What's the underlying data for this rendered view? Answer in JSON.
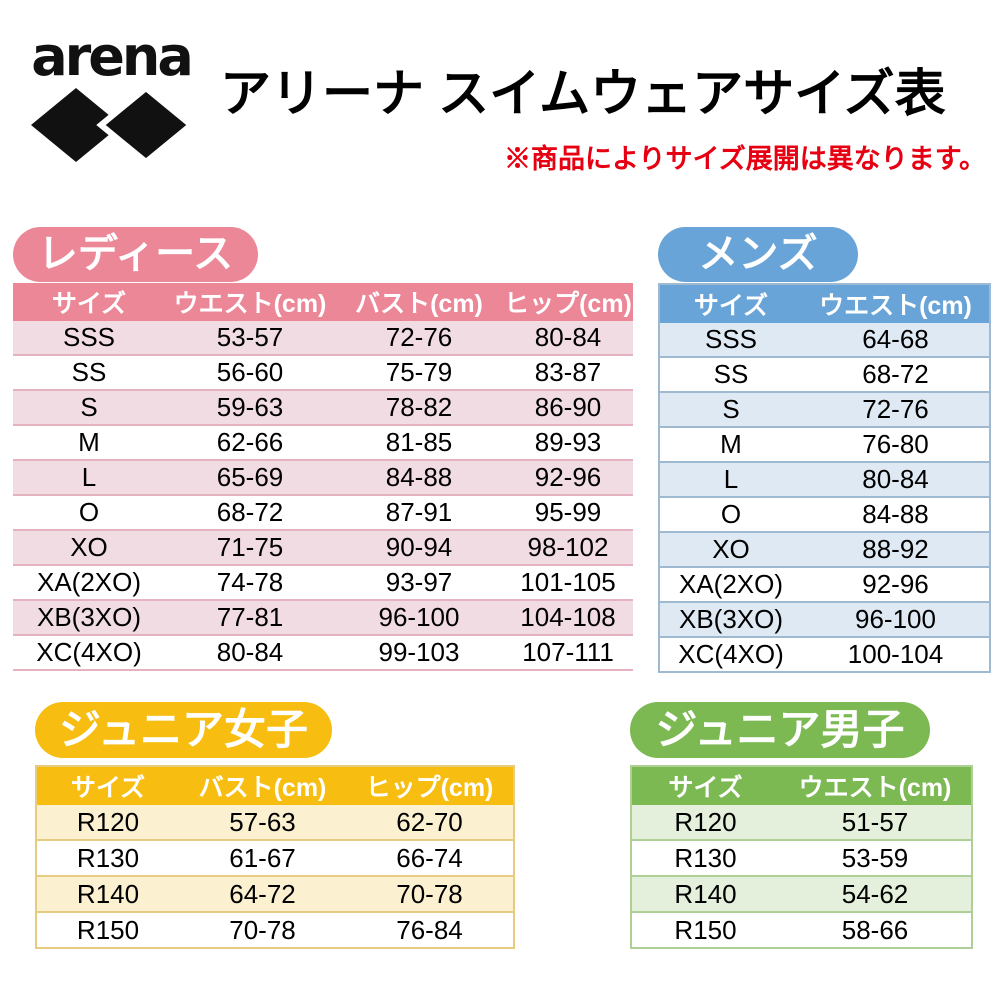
{
  "header": {
    "logo_text": "arena",
    "title": "アリーナ スイムウェアサイズ表",
    "note": "※商品によりサイズ展開は異なります。"
  },
  "colors": {
    "note-red": "#e60012",
    "ladies-main": "#ec8798",
    "ladies-row": "#f2dce3",
    "ladies-line": "#e5b3c0",
    "mens-main": "#68a4d7",
    "mens-row": "#dfe9f3",
    "mens-line": "#9fb9d0",
    "girls-main": "#f7bd11",
    "girls-row": "#fbf0d0",
    "girls-line": "#e6cb80",
    "boys-main": "#7cb953",
    "boys-row": "#e4efdc",
    "boys-line": "#aecf96"
  },
  "sections": {
    "ladies": {
      "badge": "レディース",
      "columns": [
        "サイズ",
        "ウエスト(cm)",
        "バスト(cm)",
        "ヒップ(cm)"
      ],
      "col_widths": [
        "150px",
        "168px",
        "166px",
        "128px"
      ],
      "rows": [
        [
          "SSS",
          "53-57",
          "72-76",
          "80-84"
        ],
        [
          "SS",
          "56-60",
          "75-79",
          "83-87"
        ],
        [
          "S",
          "59-63",
          "78-82",
          "86-90"
        ],
        [
          "M",
          "62-66",
          "81-85",
          "89-93"
        ],
        [
          "L",
          "65-69",
          "84-88",
          "92-96"
        ],
        [
          "O",
          "68-72",
          "87-91",
          "95-99"
        ],
        [
          "XO",
          "71-75",
          "90-94",
          "98-102"
        ],
        [
          "XA(2XO)",
          "74-78",
          "93-97",
          "101-105"
        ],
        [
          "XB(3XO)",
          "77-81",
          "96-100",
          "104-108"
        ],
        [
          "XC(4XO)",
          "80-84",
          "99-103",
          "107-111"
        ]
      ]
    },
    "mens": {
      "badge": "メンズ",
      "columns": [
        "サイズ",
        "ウエスト(cm)"
      ],
      "col_widths": [
        "140px",
        "185px"
      ],
      "rows": [
        [
          "SSS",
          "64-68"
        ],
        [
          "SS",
          "68-72"
        ],
        [
          "S",
          "72-76"
        ],
        [
          "M",
          "76-80"
        ],
        [
          "L",
          "80-84"
        ],
        [
          "O",
          "84-88"
        ],
        [
          "XO",
          "88-92"
        ],
        [
          "XA(2XO)",
          "92-96"
        ],
        [
          "XB(3XO)",
          "96-100"
        ],
        [
          "XC(4XO)",
          "100-104"
        ]
      ]
    },
    "junior_girls": {
      "badge": "ジュニア女子",
      "columns": [
        "サイズ",
        "バスト(cm)",
        "ヒップ(cm)"
      ],
      "col_widths": [
        "140px",
        "165px",
        "165px"
      ],
      "rows": [
        [
          "R120",
          "57-63",
          "62-70"
        ],
        [
          "R130",
          "61-67",
          "66-74"
        ],
        [
          "R140",
          "64-72",
          "70-78"
        ],
        [
          "R150",
          "70-78",
          "76-84"
        ]
      ]
    },
    "junior_boys": {
      "badge": "ジュニア男子",
      "columns": [
        "サイズ",
        "ウエスト(cm)"
      ],
      "col_widths": [
        "145px",
        "190px"
      ],
      "rows": [
        [
          "R120",
          "51-57"
        ],
        [
          "R130",
          "53-59"
        ],
        [
          "R140",
          "54-62"
        ],
        [
          "R150",
          "58-66"
        ]
      ]
    }
  }
}
